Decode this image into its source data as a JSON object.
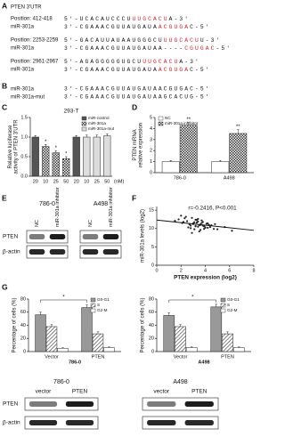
{
  "panel_labels": [
    "A",
    "B",
    "C",
    "D",
    "E",
    "F",
    "G"
  ],
  "sequences": {
    "title": "PTEN 3'UTR",
    "sites": [
      {
        "position": "Position: 412-418",
        "utr": [
          {
            "text": "5'-UCACAUCCCU",
            "color": "#111"
          },
          {
            "text": "UUGCACU",
            "color": "#e0202a"
          },
          {
            "text": "A-3'",
            "color": "#111"
          }
        ],
        "mir_name": "miR-301a",
        "mir": [
          {
            "text": "3'-CGAAACGUUAUGAUA",
            "color": "#111"
          },
          {
            "text": "ACGUGA",
            "color": "#e0202a"
          },
          {
            "text": "C-5'",
            "color": "#111"
          }
        ]
      },
      {
        "position": "Position: 2253-2259",
        "utr": [
          {
            "text": "5'-GACAUUAUAAUGGGCU",
            "color": "#111"
          },
          {
            "text": "UUGCACU",
            "color": "#e0202a"
          },
          {
            "text": "U-3'",
            "color": "#111"
          }
        ],
        "mir_name": "miR-301a",
        "mir": [
          {
            "text": "3'-CGAAACGUUAUGAUAA----",
            "color": "#111"
          },
          {
            "text": "CGUGAC",
            "color": "#e0202a"
          },
          {
            "text": "-5'",
            "color": "#111"
          }
        ]
      },
      {
        "position": "Position: 2961-2967",
        "utr": [
          {
            "text": "5'-AGAGGGGGUGCU",
            "color": "#111"
          },
          {
            "text": "UUGCACU",
            "color": "#e0202a"
          },
          {
            "text": "A-3'",
            "color": "#111"
          }
        ],
        "mir_name": "miR-301a",
        "mir": [
          {
            "text": "3'-CGAAACGUUAUGAUA",
            "color": "#111"
          },
          {
            "text": "ACGUGA",
            "color": "#e0202a"
          },
          {
            "text": "C-5'",
            "color": "#111"
          }
        ]
      }
    ]
  },
  "mutant": {
    "rows": [
      {
        "name": "miR-301a",
        "seq": "3'-CGAAACGUUAUGAUAACGUGAC-5'"
      },
      {
        "name": "miR-301a-mut",
        "seq": "3'-CGAAACGUUAUGAUAAGCACUG-5'"
      }
    ]
  },
  "blots_e": {
    "groups": [
      {
        "cell": "786-0",
        "lanes": [
          "NC",
          "miR-301a inhibitor"
        ]
      },
      {
        "cell": "A498",
        "lanes": [
          "NC",
          "miR-301a inhibitor"
        ]
      }
    ],
    "rows": [
      "PTEN",
      "β-actin"
    ]
  },
  "blots_g": {
    "groups": [
      {
        "cell": "786-0",
        "lanes": [
          "vector",
          "PTEN"
        ]
      },
      {
        "cell": "A498",
        "lanes": [
          "vector",
          "PTEN"
        ]
      }
    ],
    "rows": [
      "PTEN",
      "β-actin"
    ]
  },
  "chart_data": [
    {
      "type": "bar",
      "title": "293-T",
      "ylabel": [
        "Relative luciferase",
        "activity of PTEN 3'UTR"
      ],
      "categories": [
        "20",
        "10",
        "25",
        "50",
        "20",
        "10",
        "25",
        "50"
      ],
      "x_unit": "(nM)",
      "ylim": [
        0,
        1.5
      ],
      "yticks": [
        {
          "value": 0,
          "label": "0.0"
        },
        {
          "value": 0.5,
          "label": "0.5"
        },
        {
          "value": 1,
          "label": "1.0"
        },
        {
          "value": 1.5,
          "label": "1.5"
        }
      ],
      "legend": "upper right",
      "series": [
        {
          "name": "miR-control",
          "color": "#555555",
          "values": [
            1.0,
            null,
            null,
            null,
            1.0,
            null,
            null,
            null
          ],
          "errors": [
            0.04,
            null,
            null,
            null,
            0.04,
            null,
            null,
            null
          ]
        },
        {
          "name": "miR-301a",
          "color": "#333333",
          "pattern": "checker",
          "values": [
            null,
            0.76,
            0.6,
            0.45,
            null,
            null,
            null,
            null
          ],
          "errors": [
            null,
            0.05,
            0.05,
            0.05,
            null,
            null,
            null,
            null
          ],
          "significance": [
            null,
            "*",
            "*",
            "*",
            null,
            null,
            null,
            null
          ]
        },
        {
          "name": "miR-301a-mut",
          "color": "#dddddd",
          "values": [
            null,
            null,
            null,
            null,
            null,
            1.0,
            1.0,
            1.03
          ],
          "errors": [
            null,
            null,
            null,
            null,
            null,
            0.05,
            0.05,
            0.05
          ]
        }
      ]
    },
    {
      "type": "bar",
      "ylabel": [
        "PTEN mRNA",
        "relative expression"
      ],
      "categories": [
        "786-0",
        "A498"
      ],
      "ylim": [
        0,
        5
      ],
      "yticks": [
        0,
        1,
        2,
        3,
        4,
        5
      ],
      "legend": "upper left",
      "series": [
        {
          "name": "NC",
          "color": "#ffffff",
          "values": [
            1.0,
            1.0
          ],
          "errors": [
            0.1,
            0.1
          ]
        },
        {
          "name": "miR-301a inhibitor",
          "color": "#333333",
          "pattern": "checker",
          "values": [
            4.3,
            3.55
          ],
          "errors": [
            0.25,
            0.35
          ],
          "significance": [
            "**",
            "**"
          ]
        }
      ]
    },
    {
      "type": "scatter",
      "annotation": "r=-0.2416, P<0.001",
      "xlabel": "PTEN expression (log2)",
      "ylabel": [
        "miR-301a levels (log2)"
      ],
      "xlim": [
        0,
        8
      ],
      "xticks": [
        0,
        2,
        4,
        6,
        8
      ],
      "ylim": [
        0,
        16
      ],
      "yticks": [
        0,
        5,
        10,
        15
      ],
      "color": "#222222",
      "x": [
        2.1,
        2.5,
        2.8,
        3.0,
        3.2,
        3.4,
        3.6,
        3.8,
        4.0,
        4.2,
        2.3,
        2.7,
        3.1,
        3.3,
        3.5,
        3.7,
        3.9,
        4.1,
        4.4,
        4.7,
        1.8,
        2.2,
        2.6,
        2.9,
        3.0,
        3.2,
        3.4,
        3.6,
        3.8,
        4.3,
        2.4,
        2.8,
        3.1,
        3.3,
        3.5,
        3.7,
        4.0,
        4.5,
        5.0,
        5.6,
        1.5,
        2.0,
        2.9,
        3.2,
        3.4,
        3.6,
        3.9,
        4.2,
        4.8,
        6.2
      ],
      "y": [
        11.5,
        12.0,
        10.8,
        11.2,
        12.4,
        10.5,
        11.0,
        11.8,
        10.2,
        11.4,
        12.8,
        11.1,
        9.8,
        11.6,
        10.9,
        12.2,
        10.6,
        11.3,
        10.4,
        9.9,
        12.5,
        11.8,
        10.3,
        12.9,
        11.4,
        10.7,
        11.9,
        9.6,
        10.8,
        11.0,
        13.2,
        10.1,
        11.7,
        12.3,
        9.2,
        11.5,
        10.3,
        10.9,
        9.8,
        10.4,
        12.1,
        13.5,
        8.8,
        10.6,
        12.6,
        11.1,
        9.9,
        10.2,
        11.2,
        9.4
      ],
      "trend": {
        "x": [
          0,
          8
        ],
        "y": [
          12.3,
          9.5
        ]
      }
    },
    {
      "type": "bar",
      "ylabel": [
        "Percentage of cells (%)"
      ],
      "categories": [
        "Vector",
        "PTEN"
      ],
      "x_group_label": "786-0",
      "ylim": [
        0,
        80
      ],
      "yticks": [
        0,
        20,
        40,
        60,
        80
      ],
      "legend": "upper right",
      "comparison": "*",
      "series": [
        {
          "name": "G0-G1",
          "color": "#999999",
          "values": [
            56,
            67
          ],
          "errors": [
            4,
            4
          ]
        },
        {
          "name": "S",
          "color": "#333333",
          "pattern": "hatch",
          "values": [
            38,
            27
          ],
          "errors": [
            3,
            3
          ]
        },
        {
          "name": "G2-M",
          "color": "#ffffff",
          "values": [
            5,
            6
          ],
          "errors": [
            1,
            1
          ]
        }
      ]
    },
    {
      "type": "bar",
      "ylabel": [
        "Percentage of cells (%)"
      ],
      "categories": [
        "Vector",
        "PTEN"
      ],
      "x_group_label": "A498",
      "ylim": [
        0,
        80
      ],
      "yticks": [
        0,
        20,
        40,
        60,
        80
      ],
      "legend": "upper right",
      "comparison": "*",
      "series": [
        {
          "name": "G0-G1",
          "color": "#999999",
          "values": [
            55,
            68
          ],
          "errors": [
            4,
            4
          ]
        },
        {
          "name": "S",
          "color": "#333333",
          "pattern": "hatch",
          "values": [
            38,
            27
          ],
          "errors": [
            3,
            3
          ]
        },
        {
          "name": "G2-M",
          "color": "#ffffff",
          "values": [
            6,
            6
          ],
          "errors": [
            1,
            1
          ]
        }
      ]
    }
  ]
}
